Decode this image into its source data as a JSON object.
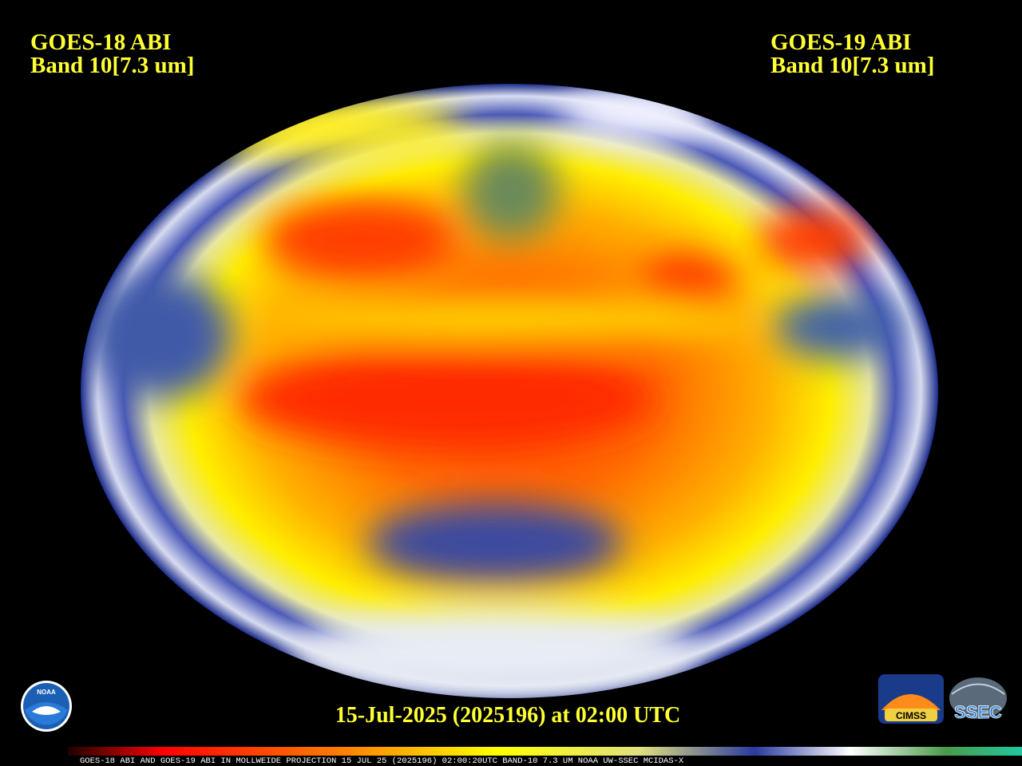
{
  "left_label": {
    "satellite": "GOES-18 ABI",
    "band": "Band 10[7.3 um]"
  },
  "right_label": {
    "satellite": "GOES-19 ABI",
    "band": "Band 10[7.3 um]"
  },
  "timestamp": "15-Jul-2025 (2025196) at 02:00 UTC",
  "footer_bar": "GOES-18 ABI AND GOES-19 ABI IN MOLLWEIDE PROJECTION 15 JUL 25 (2025196) 02:00:20UTC BAND-10 7.3 UM NOAA UW-SSEC MCIDAS-X",
  "logos": {
    "noaa": "NOAA",
    "cimss": "CIMSS",
    "ssec": "SSEC"
  }
}
